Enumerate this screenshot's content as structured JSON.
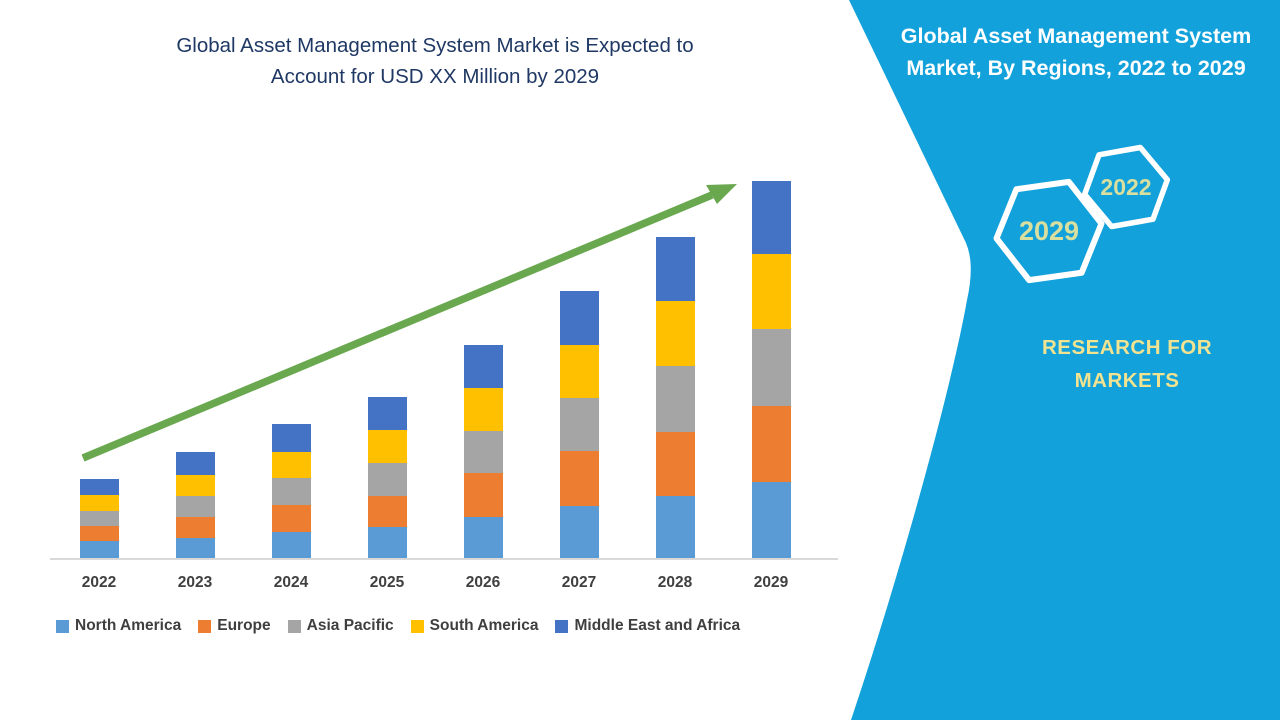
{
  "colors": {
    "panel_cyan": "#12a1da",
    "title_navy": "#1f3864",
    "axis_text": "#404040",
    "legend_text": "#3f3f3f",
    "axis_line": "#d9d9d9",
    "arrow_green": "#69a84f",
    "hex_outline": "#ffffff",
    "hex_year_text": "#d9df9e",
    "logo_text": "#f2e391",
    "rp_title_text": "#ffffff"
  },
  "chart_title": {
    "line1": "Global Asset Management System Market is Expected to",
    "line2": "Account for USD XX Million by 2029"
  },
  "chart_data": {
    "type": "bar",
    "stacked": true,
    "title": "Global Asset Management System Market is Expected to Account for USD XX Million by 2029",
    "categories": [
      "2022",
      "2023",
      "2024",
      "2025",
      "2026",
      "2027",
      "2028",
      "2029"
    ],
    "series": [
      {
        "name": "North America",
        "color": "#5B9BD5",
        "values": [
          17,
          20,
          26,
          31,
          41,
          52,
          62,
          76
        ]
      },
      {
        "name": "Europe",
        "color": "#ED7D31",
        "values": [
          15,
          21,
          27,
          31,
          44,
          55,
          64,
          76
        ]
      },
      {
        "name": "Asia Pacific",
        "color": "#A5A5A5",
        "values": [
          15,
          21,
          27,
          33,
          42,
          53,
          66,
          77
        ]
      },
      {
        "name": "South America",
        "color": "#FFC000",
        "values": [
          16,
          21,
          26,
          33,
          43,
          53,
          65,
          75
        ]
      },
      {
        "name": "Middle East and Africa",
        "color": "#4472C4",
        "values": [
          16,
          23,
          28,
          33,
          43,
          54,
          64,
          73
        ]
      }
    ],
    "xlabel": "",
    "ylabel": "",
    "ylim": [
      0,
      400
    ],
    "value_axis_visible": false,
    "grid": false,
    "legend_position": "bottom",
    "annotations": [
      "upward green trend arrow across bar tops"
    ],
    "note": "No value axis or data labels shown in source; values are relative units estimated from bar segment heights (title states USD XX Million)."
  },
  "right_panel": {
    "title": {
      "line1": "Global Asset Management System",
      "line2": "Market, By Regions, 2022 to 2029"
    },
    "hexagons": [
      {
        "label": "2029"
      },
      {
        "label": "2022"
      }
    ],
    "logo": {
      "line1": "RESEARCH FOR",
      "line2": "MARKETS"
    }
  }
}
